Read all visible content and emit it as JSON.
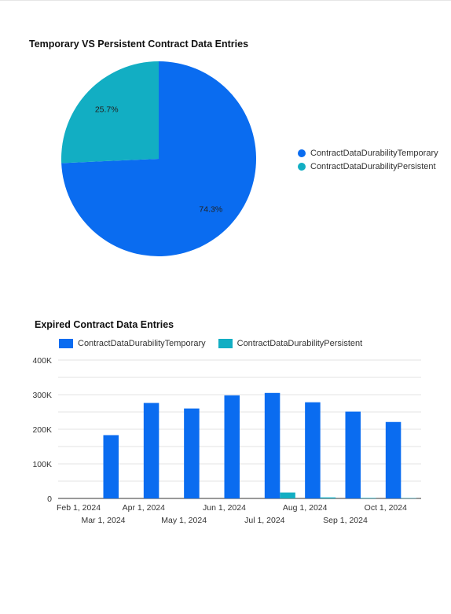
{
  "colors": {
    "temporary": "#0a6cf0",
    "persistent": "#12aec3",
    "grid": "#e3e3e3",
    "axis": "#333333"
  },
  "chart_data": [
    {
      "type": "pie",
      "title": "Temporary VS Persistent Contract Data Entries",
      "legend_position": "right",
      "slices": [
        {
          "name": "ContractDataDurabilityTemporary",
          "value": 74.3,
          "label": "74.3%"
        },
        {
          "name": "ContractDataDurabilityPersistent",
          "value": 25.7,
          "label": "25.7%"
        }
      ]
    },
    {
      "type": "bar",
      "title": "Expired Contract Data Entries",
      "legend_position": "top",
      "grid": true,
      "categories": [
        "Feb 2024",
        "Mar 2024",
        "Apr 2024",
        "May 2024",
        "Jun 2024",
        "Jul 2024",
        "Aug 2024",
        "Sep 2024",
        "Oct 2024"
      ],
      "x_tick_labels_row1": [
        "Feb 1, 2024",
        "Apr 1, 2024",
        "Jun 1, 2024",
        "Aug 1, 2024",
        "Oct 1, 2024"
      ],
      "x_tick_labels_row2": [
        "Mar 1, 2024",
        "May 1, 2024",
        "Jul 1, 2024",
        "Sep 1, 2024"
      ],
      "y_ticks": [
        0,
        100000,
        200000,
        300000,
        400000
      ],
      "y_tick_labels": [
        "0",
        "100K",
        "200K",
        "300K",
        "400K"
      ],
      "ylim": [
        0,
        400000
      ],
      "series": [
        {
          "name": "ContractDataDurabilityTemporary",
          "values": [
            0,
            183000,
            276000,
            260000,
            298000,
            305000,
            278000,
            251000,
            221000
          ]
        },
        {
          "name": "ContractDataDurabilityPersistent",
          "values": [
            0,
            0,
            0,
            0,
            0,
            17000,
            3000,
            1500,
            1000
          ]
        }
      ]
    }
  ]
}
